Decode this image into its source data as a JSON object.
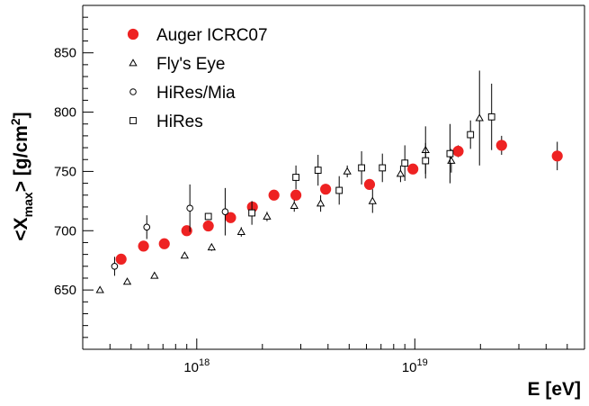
{
  "chart_data": {
    "type": "scatter",
    "xlabel": "E [eV]",
    "ylabel_main": "<X",
    "ylabel_sub": "max",
    "ylabel_end": "> [g/cm",
    "ylabel_sup": "2",
    "ylabel_close": "]",
    "x_scale": "log",
    "xlim": [
      3e+17,
      6e+19
    ],
    "ylim": [
      600,
      890
    ],
    "y_ticks": [
      650,
      700,
      750,
      800,
      850
    ],
    "y_tick_labels": [
      "650",
      "700",
      "750",
      "800",
      "850"
    ],
    "x_tick_labels": [
      {
        "value": 1e+18,
        "base": "10",
        "exp": "18"
      },
      {
        "value": 1e+19,
        "base": "10",
        "exp": "19"
      }
    ],
    "grid": false,
    "legend_position": "top-left",
    "series": [
      {
        "name": "Auger ICRC07",
        "marker": "filled-circle",
        "color": "#ee2222",
        "points": [
          {
            "x": 4.5e+17,
            "y": 676,
            "err": 0
          },
          {
            "x": 5.7e+17,
            "y": 687,
            "err": 0
          },
          {
            "x": 7.1e+17,
            "y": 689,
            "err": 0
          },
          {
            "x": 9e+17,
            "y": 700,
            "err": 0
          },
          {
            "x": 1.13e+18,
            "y": 704,
            "err": 0
          },
          {
            "x": 1.43e+18,
            "y": 711,
            "err": 0
          },
          {
            "x": 1.8e+18,
            "y": 720,
            "err": 0
          },
          {
            "x": 2.26e+18,
            "y": 730,
            "err": 0
          },
          {
            "x": 2.85e+18,
            "y": 730,
            "err": 0
          },
          {
            "x": 3.9e+18,
            "y": 735,
            "err": 0
          },
          {
            "x": 6.2e+18,
            "y": 739,
            "err": 4
          },
          {
            "x": 9.8e+18,
            "y": 752,
            "err": 4
          },
          {
            "x": 1.58e+19,
            "y": 767,
            "err": 5
          },
          {
            "x": 2.5e+19,
            "y": 772,
            "err": 8
          },
          {
            "x": 4.5e+19,
            "y": 763,
            "err": 12
          }
        ]
      },
      {
        "name": "Fly's Eye",
        "marker": "open-triangle",
        "color": "#000000",
        "points": [
          {
            "x": 3.6e+17,
            "y": 650,
            "err": 0
          },
          {
            "x": 4.8e+17,
            "y": 657,
            "err": 0
          },
          {
            "x": 6.4e+17,
            "y": 662,
            "err": 0
          },
          {
            "x": 8.8e+17,
            "y": 679,
            "err": 0
          },
          {
            "x": 1.17e+18,
            "y": 686,
            "err": 3
          },
          {
            "x": 1.6e+18,
            "y": 699,
            "err": 4
          },
          {
            "x": 2.1e+18,
            "y": 712,
            "err": 4
          },
          {
            "x": 2.8e+18,
            "y": 721,
            "err": 5
          },
          {
            "x": 3.7e+18,
            "y": 723,
            "err": 7
          },
          {
            "x": 4.9e+18,
            "y": 750,
            "err": 5
          },
          {
            "x": 6.4e+18,
            "y": 725,
            "err": 10
          },
          {
            "x": 8.6e+18,
            "y": 748,
            "err": 7
          },
          {
            "x": 1.12e+19,
            "y": 768,
            "err": 20
          },
          {
            "x": 1.47e+19,
            "y": 759,
            "err": 10
          },
          {
            "x": 1.98e+19,
            "y": 795,
            "err": 40
          }
        ]
      },
      {
        "name": "HiRes/Mia",
        "marker": "open-circle",
        "color": "#000000",
        "points": [
          {
            "x": 4.2e+17,
            "y": 670,
            "err": 8
          },
          {
            "x": 5.9e+17,
            "y": 703,
            "err": 10
          },
          {
            "x": 9.3e+17,
            "y": 719,
            "err": 20
          },
          {
            "x": 1.35e+18,
            "y": 716,
            "err": 20
          }
        ]
      },
      {
        "name": "HiRes",
        "marker": "open-square",
        "color": "#000000",
        "points": [
          {
            "x": 1.13e+18,
            "y": 712,
            "err": 0
          },
          {
            "x": 1.79e+18,
            "y": 715,
            "err": 10
          },
          {
            "x": 2.85e+18,
            "y": 745,
            "err": 10
          },
          {
            "x": 3.6e+18,
            "y": 751,
            "err": 13
          },
          {
            "x": 4.5e+18,
            "y": 734,
            "err": 12
          },
          {
            "x": 5.7e+18,
            "y": 753,
            "err": 14
          },
          {
            "x": 7.1e+18,
            "y": 753,
            "err": 12
          },
          {
            "x": 9e+18,
            "y": 757,
            "err": 15
          },
          {
            "x": 1.12e+19,
            "y": 759,
            "err": 15
          },
          {
            "x": 1.45e+19,
            "y": 765,
            "err": 25
          },
          {
            "x": 1.8e+19,
            "y": 781,
            "err": 12
          },
          {
            "x": 2.25e+19,
            "y": 796,
            "err": 28
          }
        ]
      }
    ]
  }
}
